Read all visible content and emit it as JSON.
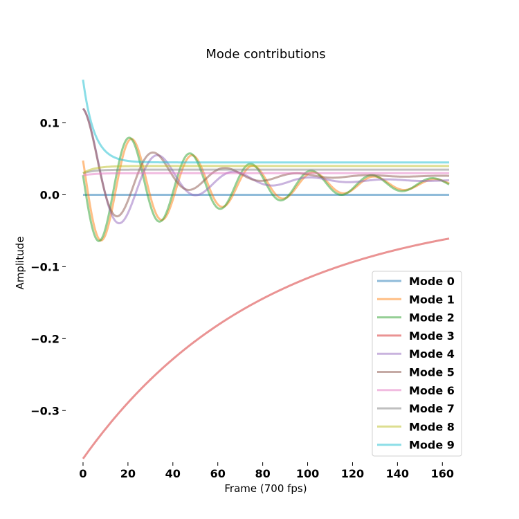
{
  "chart_data": {
    "type": "line",
    "title": "Mode contributions",
    "xlabel": "Frame (700 fps)",
    "ylabel": "Amplitude",
    "xlim": [
      -4,
      167
    ],
    "ylim": [
      -0.37,
      0.165
    ],
    "xticks": [
      0,
      20,
      40,
      60,
      80,
      100,
      120,
      140,
      160
    ],
    "yticks": [
      0.1,
      0.0,
      -0.1,
      -0.2,
      -0.3
    ],
    "ytick_labels": [
      "0.1",
      "0.0",
      "−0.1",
      "−0.2",
      "−0.3"
    ],
    "grid": false,
    "legend_position": "lower-right",
    "x_range": [
      0,
      163
    ],
    "series": [
      {
        "name": "Mode 0",
        "color": "#1f77b4",
        "model": {
          "kind": "const",
          "c": 0.0
        }
      },
      {
        "name": "Mode 1",
        "color": "#ff7f0e",
        "model": {
          "kind": "osc",
          "c": 0.015,
          "a": 0.09,
          "tau": 60,
          "period": 27,
          "phase": 1.2,
          "xs": 0
        }
      },
      {
        "name": "Mode 2",
        "color": "#2ca02c",
        "model": {
          "kind": "osc",
          "c": 0.015,
          "a": 0.09,
          "tau": 65,
          "period": 27,
          "phase": 1.2,
          "xs": 0,
          "shift": 1.0
        }
      },
      {
        "name": "Mode 3",
        "color": "#d62728",
        "model": {
          "kind": "exp",
          "c": -0.015,
          "a": -0.352,
          "tau": 80
        }
      },
      {
        "name": "Mode 4",
        "color": "#9467bd",
        "model": {
          "kind": "osc",
          "c": 0.02,
          "a": 0.1,
          "tau": 32,
          "period": 34,
          "phase": 0.0,
          "xs": 0
        }
      },
      {
        "name": "Mode 5",
        "color": "#8c564b",
        "model": {
          "kind": "osc",
          "c": 0.026,
          "a": 0.094,
          "tau": 30,
          "period": 32,
          "phase": 0.0,
          "xs": 0
        }
      },
      {
        "name": "Mode 6",
        "color": "#e377c2",
        "model": {
          "kind": "exp",
          "c": 0.03,
          "a": -0.003,
          "tau": 5
        }
      },
      {
        "name": "Mode 7",
        "color": "#7f7f7f",
        "model": {
          "kind": "exp",
          "c": 0.035,
          "a": -0.005,
          "tau": 5
        }
      },
      {
        "name": "Mode 8",
        "color": "#bcbd22",
        "model": {
          "kind": "exp",
          "c": 0.04,
          "a": -0.01,
          "tau": 5
        }
      },
      {
        "name": "Mode 9",
        "color": "#17becf",
        "model": {
          "kind": "exp",
          "c": 0.045,
          "a": 0.115,
          "tau": 5
        }
      }
    ]
  }
}
